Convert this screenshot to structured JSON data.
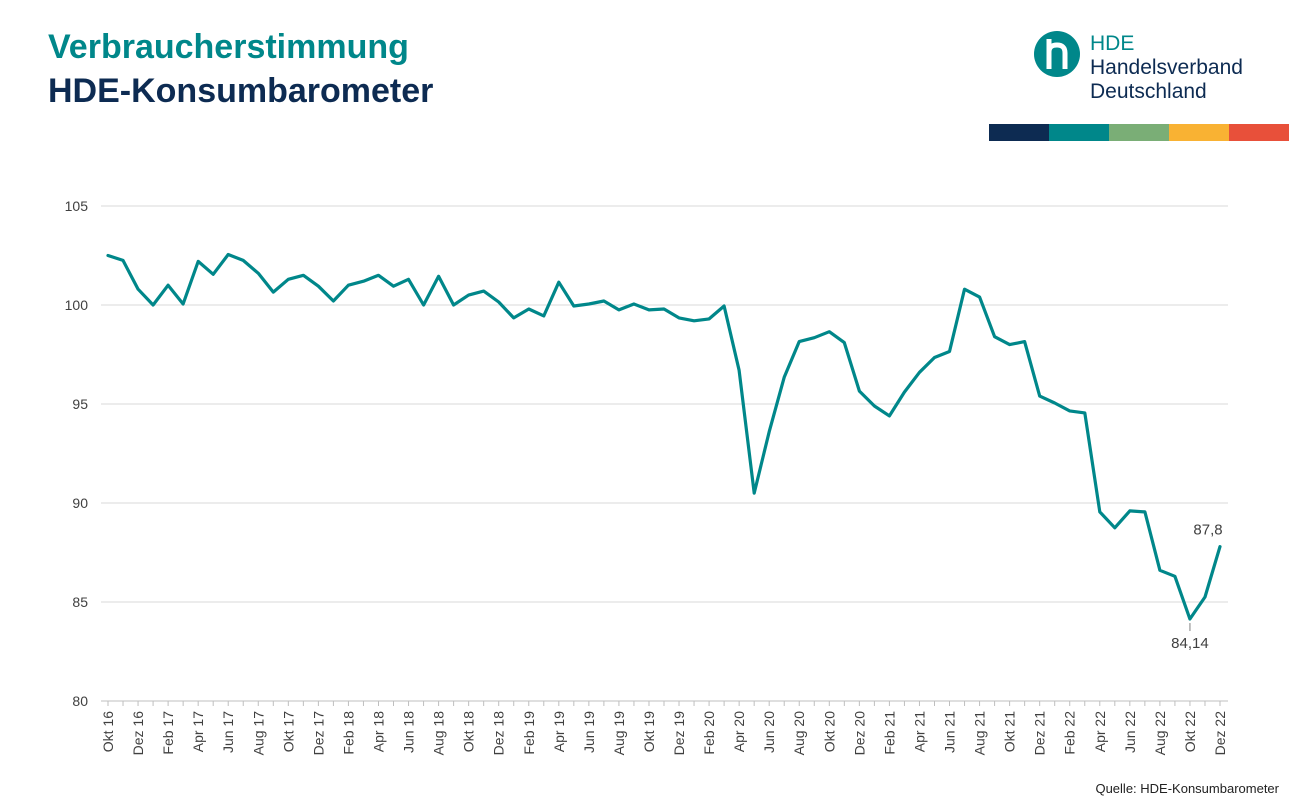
{
  "header": {
    "title_line1": "Verbraucherstimmung",
    "title_line2": "HDE-Konsumbarometer"
  },
  "logo": {
    "abbr": "HDE",
    "name_line1": "Handelsverband",
    "name_line2": "Deutschland",
    "icon": "hde-h-logo-icon"
  },
  "brand_colors": [
    "#0d2b52",
    "#00878a",
    "#7aae76",
    "#f9b233",
    "#e8503a"
  ],
  "source": "Quelle: HDE-Konsumbarometer",
  "chart_data": {
    "type": "line",
    "title": "",
    "xlabel": "",
    "ylabel": "",
    "ylim": [
      80,
      105
    ],
    "yticks": [
      80,
      85,
      90,
      95,
      100,
      105
    ],
    "grid": true,
    "line_color": "#00878a",
    "x": [
      "Okt 16",
      "Nov 16",
      "Dez 16",
      "Jan 17",
      "Feb 17",
      "Mär 17",
      "Apr 17",
      "Mai 17",
      "Jun 17",
      "Jul 17",
      "Aug 17",
      "Sep 17",
      "Okt 17",
      "Nov 17",
      "Dez 17",
      "Jan 18",
      "Feb 18",
      "Mär 18",
      "Apr 18",
      "Mai 18",
      "Jun 18",
      "Jul 18",
      "Aug 18",
      "Sep 18",
      "Okt 18",
      "Nov 18",
      "Dez 18",
      "Jan 19",
      "Feb 19",
      "Mär 19",
      "Apr 19",
      "Mai 19",
      "Jun 19",
      "Jul 19",
      "Aug 19",
      "Sep 19",
      "Okt 19",
      "Nov 19",
      "Dez 19",
      "Jan 20",
      "Feb 20",
      "Mär 20",
      "Apr 20",
      "Mai 20",
      "Jun 20",
      "Jul 20",
      "Aug 20",
      "Sep 20",
      "Okt 20",
      "Nov 20",
      "Dez 20",
      "Jan 21",
      "Feb 21",
      "Mär 21",
      "Apr 21",
      "Mai 21",
      "Jun 21",
      "Jul 21",
      "Aug 21",
      "Sep 21",
      "Okt 21",
      "Nov 21",
      "Dez 21",
      "Jan 22",
      "Feb 22",
      "Mär 22",
      "Apr 22",
      "Mai 22",
      "Jun 22",
      "Jul 22",
      "Aug 22",
      "Sep 22",
      "Okt 22",
      "Nov 22",
      "Dez 22"
    ],
    "tick_labels": [
      "Okt 16",
      "Dez 16",
      "Feb 17",
      "Apr 17",
      "Jun 17",
      "Aug 17",
      "Okt 17",
      "Dez 17",
      "Feb 18",
      "Apr 18",
      "Jun 18",
      "Aug 18",
      "Okt 18",
      "Dez 18",
      "Feb 19",
      "Apr 19",
      "Jun 19",
      "Aug 19",
      "Okt 19",
      "Dez 19",
      "Feb 20",
      "Apr 20",
      "Jun 20",
      "Aug 20",
      "Okt 20",
      "Dez 20",
      "Feb 21",
      "Apr 21",
      "Jun 21",
      "Aug 21",
      "Okt 21",
      "Dez 21",
      "Feb 22",
      "Apr 22",
      "Jun 22",
      "Aug 22",
      "Okt 22",
      "Dez 22"
    ],
    "series": [
      {
        "values": [
          102.5,
          102.25,
          100.8,
          100.0,
          101.0,
          100.05,
          102.2,
          101.55,
          102.55,
          102.25,
          101.6,
          100.65,
          101.3,
          101.5,
          100.95,
          100.2,
          101.0,
          101.2,
          101.5,
          100.95,
          101.3,
          100.0,
          101.45,
          100.0,
          100.5,
          100.7,
          100.15,
          99.35,
          99.8,
          99.45,
          101.15,
          99.95,
          100.05,
          100.2,
          99.75,
          100.05,
          99.75,
          99.8,
          99.35,
          99.2,
          99.3,
          99.95,
          96.7,
          90.5,
          93.6,
          96.35,
          98.15,
          98.35,
          98.65,
          98.1,
          95.65,
          94.9,
          94.4,
          95.6,
          96.6,
          97.35,
          97.65,
          100.8,
          100.4,
          98.4,
          98.0,
          98.15,
          95.4,
          95.05,
          94.65,
          94.55,
          89.55,
          88.75,
          89.6,
          89.55,
          86.6,
          86.3,
          84.14,
          85.25,
          87.8
        ]
      }
    ],
    "annotations": [
      {
        "label": "87,8",
        "category": "Dez 22",
        "value": 87.8,
        "position": "above"
      },
      {
        "label": "84,14",
        "category": "Okt 22",
        "value": 84.14,
        "position": "below"
      }
    ]
  }
}
